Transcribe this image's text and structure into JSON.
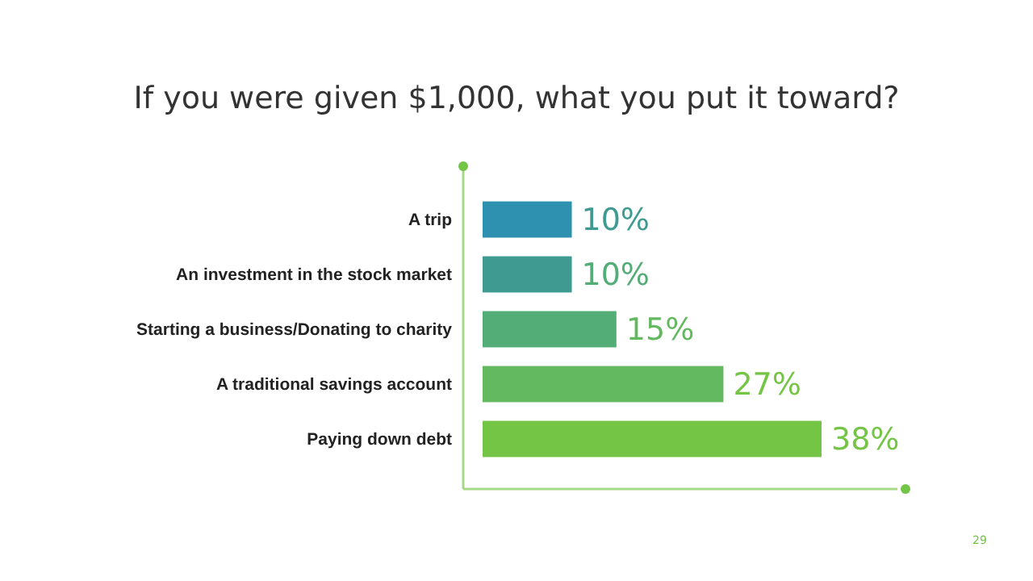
{
  "chart_data": {
    "type": "bar",
    "orientation": "horizontal",
    "title": "If you were given $1,000, what you put it toward?",
    "categories": [
      "A trip",
      "An investment in the stock market",
      "Starting a business/Donating to charity",
      "A traditional savings account",
      "Paying down debt"
    ],
    "values": [
      10,
      10,
      15,
      27,
      38
    ],
    "colors": [
      "#2e91b0",
      "#3f9b91",
      "#52ad77",
      "#62b95f",
      "#74c545"
    ],
    "value_labels": [
      "10%",
      "10%",
      "15%",
      "27%",
      "38%"
    ],
    "annotations": [
      "29"
    ]
  }
}
